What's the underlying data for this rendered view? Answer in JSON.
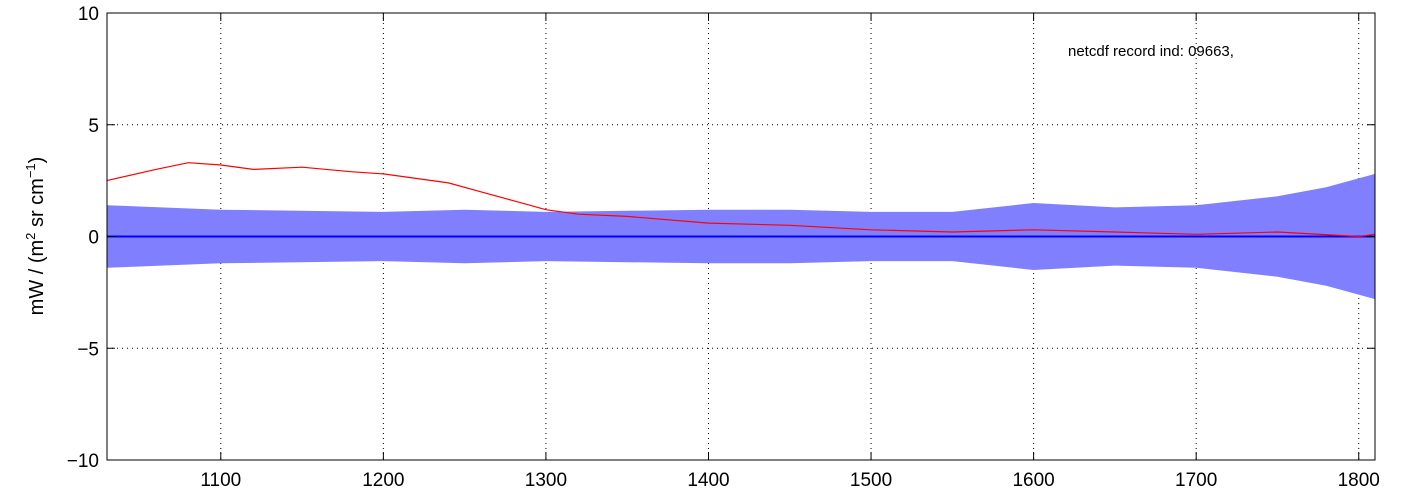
{
  "chart_data": {
    "type": "line",
    "title": "",
    "xlabel": "",
    "ylabel": {
      "prefix": "mW / (m",
      "sup1": "2",
      "middle": " sr cm",
      "sup2": "−1",
      "suffix": ")"
    },
    "xlim": [
      1030,
      1810
    ],
    "ylim": [
      -10,
      10
    ],
    "xticks": [
      1100,
      1200,
      1300,
      1400,
      1500,
      1600,
      1700,
      1800
    ],
    "xtick_labels": [
      "1100",
      "1200",
      "1300",
      "1400",
      "1500",
      "1600",
      "1700",
      "1800"
    ],
    "yticks": [
      -10,
      -5,
      0,
      5,
      10
    ],
    "ytick_labels": [
      "−10",
      "−5",
      "0",
      "5",
      "10"
    ],
    "grid": true,
    "annotation": "netcdf record ind:  09663,",
    "series": [
      {
        "role": "uncertainty band",
        "color": "#8080ff",
        "x": [
          1030,
          1100,
          1200,
          1250,
          1300,
          1400,
          1450,
          1500,
          1550,
          1600,
          1650,
          1700,
          1750,
          1780,
          1810
        ],
        "upper": [
          1.4,
          1.2,
          1.1,
          1.2,
          1.1,
          1.2,
          1.2,
          1.1,
          1.1,
          1.5,
          1.3,
          1.4,
          1.8,
          2.2,
          2.8
        ],
        "lower": [
          -1.4,
          -1.2,
          -1.1,
          -1.2,
          -1.1,
          -1.2,
          -1.2,
          -1.1,
          -1.1,
          -1.5,
          -1.3,
          -1.4,
          -1.8,
          -2.2,
          -2.8
        ]
      },
      {
        "role": "mean",
        "color": "#0000ff",
        "x": [
          1030,
          1810
        ],
        "y": [
          0,
          0
        ]
      },
      {
        "role": "difference",
        "color": "#ff0000",
        "x": [
          1030,
          1060,
          1080,
          1100,
          1120,
          1150,
          1180,
          1200,
          1220,
          1240,
          1260,
          1280,
          1300,
          1320,
          1350,
          1400,
          1450,
          1500,
          1550,
          1600,
          1650,
          1700,
          1750,
          1800,
          1810
        ],
        "y": [
          2.5,
          3.0,
          3.3,
          3.2,
          3.0,
          3.1,
          2.9,
          2.8,
          2.6,
          2.4,
          2.0,
          1.6,
          1.2,
          1.0,
          0.9,
          0.6,
          0.5,
          0.3,
          0.2,
          0.3,
          0.2,
          0.1,
          0.2,
          0.0,
          0.1
        ]
      }
    ]
  }
}
